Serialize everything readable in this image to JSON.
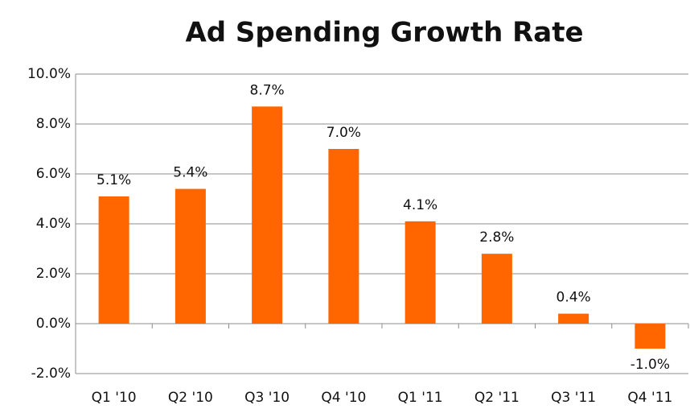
{
  "chart_data": {
    "type": "bar",
    "title": "Ad Spending Growth Rate",
    "categories": [
      "Q1 '10",
      "Q2 '10",
      "Q3 '10",
      "Q4 '10",
      "Q1 '11",
      "Q2 '11",
      "Q3 '11",
      "Q4 '11"
    ],
    "values": [
      5.1,
      5.4,
      8.7,
      7.0,
      4.1,
      2.8,
      0.4,
      -1.0
    ],
    "value_labels": [
      "5.1%",
      "5.4%",
      "8.7%",
      "7.0%",
      "4.1%",
      "2.8%",
      "0.4%",
      "-1.0%"
    ],
    "color": "#ff6600",
    "ylim": [
      -2,
      10
    ],
    "yticks": [
      {
        "value": -2,
        "label": "-2.0%"
      },
      {
        "value": 0,
        "label": "0.0%"
      },
      {
        "value": 2,
        "label": "2.0%"
      },
      {
        "value": 4,
        "label": "4.0%"
      },
      {
        "value": 6,
        "label": "6.0%"
      },
      {
        "value": 8,
        "label": "8.0%"
      },
      {
        "value": 10,
        "label": "10.0%"
      }
    ],
    "grid": true
  }
}
